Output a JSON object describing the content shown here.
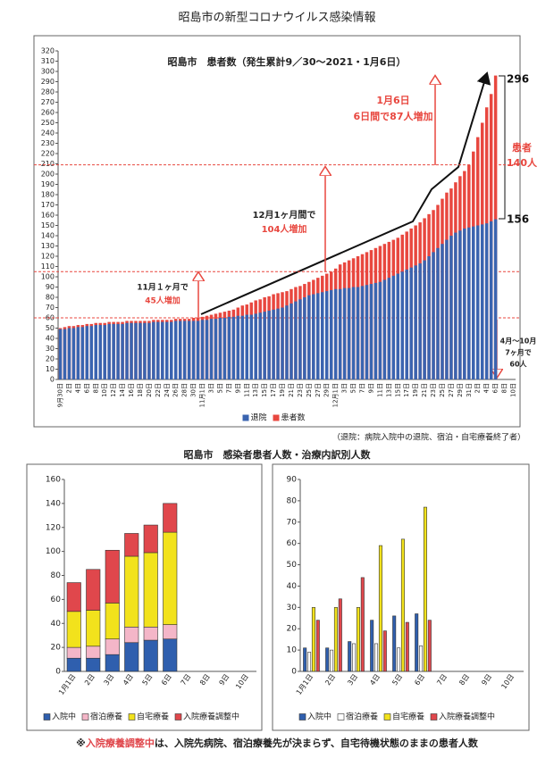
{
  "page_title": "昭島市の新型コロナウイルス感染情報",
  "note": "（退院：病院入院中の退院、宿泊・自宅療養終了者）",
  "section_title": "昭島市　感染者患者人数・治療内訳別人数",
  "footnote": {
    "mark": "※",
    "highlight": "入院療養調整中",
    "text": "は、入院先病院、宿泊療養先が決まらず、自宅待機状態のままの患者人数"
  },
  "chart_data": [
    {
      "type": "bar",
      "bar_mode": "overlap",
      "title": "昭島市　患者数（発生累計9／30～2021・1月6日）",
      "categories": [
        "9月30日",
        null,
        "2日",
        null,
        "4日",
        null,
        "6日",
        null,
        "8日",
        null,
        "10日",
        null,
        "12日",
        null,
        "14日",
        null,
        "16日",
        null,
        "18日",
        null,
        "20日",
        null,
        "22日",
        null,
        "24日",
        null,
        "26日",
        null,
        "28日",
        null,
        "30日",
        null,
        "11月1日",
        null,
        "3日",
        null,
        "5日",
        null,
        "7日",
        null,
        "9日",
        null,
        "11日",
        null,
        "13日",
        null,
        "15日",
        null,
        "17日",
        null,
        "19日",
        null,
        "21日",
        null,
        "23日",
        null,
        "25日",
        null,
        "27日",
        null,
        "29日",
        null,
        "12月1日",
        null,
        "3日",
        null,
        "5日",
        null,
        "7日",
        null,
        "9日",
        null,
        "11日",
        null,
        "13日",
        null,
        "15日",
        null,
        "17日",
        null,
        "19日",
        null,
        "21日",
        null,
        "23日",
        null,
        "25日",
        null,
        "27日",
        null,
        "29日",
        null,
        "31日",
        null,
        "2日",
        null,
        "4日",
        null,
        "6日",
        null,
        "8日",
        null,
        "10日"
      ],
      "series": [
        {
          "name": "患者数",
          "color": "#e8473f",
          "values": [
            50,
            51,
            52,
            52,
            53,
            53,
            54,
            54,
            55,
            55,
            55,
            56,
            56,
            56,
            56,
            57,
            57,
            57,
            57,
            57,
            57,
            58,
            58,
            58,
            58,
            58,
            59,
            59,
            59,
            59,
            60,
            60,
            61,
            62,
            63,
            64,
            65,
            66,
            67,
            68,
            70,
            72,
            73,
            75,
            77,
            78,
            80,
            81,
            83,
            84,
            85,
            86,
            88,
            90,
            91,
            93,
            95,
            97,
            99,
            101,
            103,
            105,
            108,
            112,
            114,
            116,
            118,
            120,
            122,
            124,
            126,
            128,
            130,
            132,
            134,
            136,
            138,
            141,
            144,
            147,
            150,
            153,
            157,
            161,
            165,
            170,
            176,
            182,
            186,
            192,
            198,
            203,
            209,
            222,
            236,
            250,
            265,
            278,
            296,
            null,
            null,
            null,
            null
          ]
        },
        {
          "name": "退院",
          "color": "#3a64b0",
          "values": [
            49,
            49,
            50,
            50,
            51,
            51,
            52,
            52,
            53,
            53,
            53,
            54,
            54,
            54,
            54,
            55,
            55,
            55,
            55,
            55,
            55,
            56,
            56,
            56,
            56,
            56,
            57,
            57,
            57,
            57,
            57,
            57,
            58,
            58,
            59,
            59,
            60,
            60,
            61,
            61,
            62,
            62,
            63,
            63,
            64,
            65,
            66,
            67,
            68,
            69,
            70,
            72,
            74,
            76,
            78,
            80,
            82,
            83,
            84,
            85,
            86,
            87,
            88,
            88,
            89,
            89,
            90,
            90,
            91,
            92,
            93,
            94,
            95,
            97,
            99,
            101,
            103,
            105,
            107,
            109,
            111,
            113,
            116,
            120,
            124,
            128,
            132,
            136,
            140,
            143,
            145,
            147,
            148,
            149,
            150,
            151,
            152,
            154,
            156,
            null,
            null,
            null,
            null
          ]
        }
      ],
      "legend_order": [
        1,
        0
      ],
      "ylim": [
        0,
        320
      ],
      "yticks": [
        0,
        10,
        20,
        30,
        40,
        50,
        60,
        70,
        80,
        90,
        100,
        110,
        120,
        130,
        140,
        150,
        160,
        170,
        180,
        190,
        200,
        210,
        220,
        230,
        240,
        250,
        260,
        270,
        280,
        290,
        300,
        310,
        320
      ],
      "grid": false,
      "reference_lines": [
        60,
        105,
        209
      ],
      "annotations": [
        "1月6日",
        "6日間で87人増加",
        "12月1ヶ月間で",
        "104人増加",
        "11月１ヶ月で",
        "45人増加",
        "296",
        "156",
        "患者",
        "140人",
        "4月～10月",
        "7ヶ月で",
        "60人"
      ]
    },
    {
      "type": "bar",
      "bar_mode": "stacked",
      "categories": [
        "1月1日",
        "2日",
        "3日",
        "4日",
        "5日",
        "6日",
        "7日",
        "8日",
        "9日",
        "10日"
      ],
      "series": [
        {
          "name": "入院中",
          "color": "#2f5fae",
          "values": [
            11,
            11,
            14,
            24,
            26,
            27,
            null,
            null,
            null,
            null
          ]
        },
        {
          "name": "宿泊療養",
          "color": "#f4b6c8",
          "values": [
            9,
            10,
            13,
            13,
            11,
            12,
            null,
            null,
            null,
            null
          ]
        },
        {
          "name": "自宅療養",
          "color": "#f2e21c",
          "values": [
            30,
            30,
            30,
            59,
            62,
            77,
            null,
            null,
            null,
            null
          ]
        },
        {
          "name": "入院療養調整中",
          "color": "#e0474c",
          "values": [
            24,
            34,
            44,
            19,
            23,
            24,
            null,
            null,
            null,
            null
          ]
        }
      ],
      "ylim": [
        0,
        160
      ],
      "yticks": [
        0,
        20,
        40,
        60,
        80,
        100,
        120,
        140,
        160
      ],
      "grid": false
    },
    {
      "type": "bar",
      "bar_mode": "grouped",
      "categories": [
        "1月1日",
        "2日",
        "3日",
        "4日",
        "5日",
        "6日",
        "7日",
        "8日",
        "9日",
        "10日"
      ],
      "series": [
        {
          "name": "入院中",
          "color": "#2f5fae",
          "values": [
            11,
            11,
            14,
            24,
            26,
            27,
            null,
            null,
            null,
            null
          ]
        },
        {
          "name": "宿泊療養",
          "color": "#ffffff",
          "values": [
            9,
            10,
            13,
            13,
            11,
            12,
            null,
            null,
            null,
            null
          ]
        },
        {
          "name": "自宅療養",
          "color": "#f2e21c",
          "values": [
            30,
            30,
            30,
            59,
            62,
            77,
            null,
            null,
            null,
            null
          ]
        },
        {
          "name": "入院療養調整中",
          "color": "#e0474c",
          "values": [
            24,
            34,
            44,
            19,
            23,
            24,
            null,
            null,
            null,
            null
          ]
        }
      ],
      "ylim": [
        0,
        90
      ],
      "yticks": [
        0,
        10,
        20,
        30,
        40,
        50,
        60,
        70,
        80,
        90
      ],
      "grid": false
    }
  ]
}
